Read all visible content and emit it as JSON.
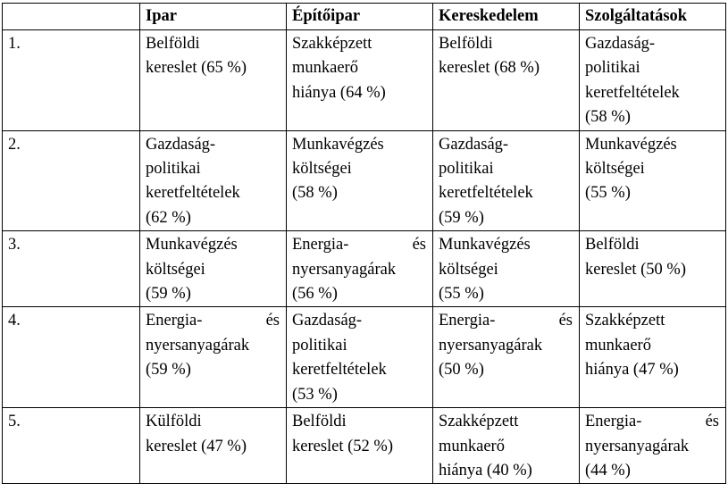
{
  "table": {
    "headers": [
      "",
      "Ipar",
      "Építőipar",
      "Kereskedelem",
      "Szolgáltatások"
    ],
    "rows": [
      {
        "rank": "1.",
        "cells": [
          [
            "Belföldi",
            "kereslet (65 %)"
          ],
          [
            "Szakképzett",
            "munkaerő",
            "hiánya (64 %)"
          ],
          [
            "Belföldi",
            "kereslet (68 %)"
          ],
          [
            "Gazdaság-",
            "politikai",
            "keretfeltételek",
            "(58 %)"
          ]
        ]
      },
      {
        "rank": "2.",
        "cells": [
          [
            "Gazdaság-",
            "politikai",
            "keretfeltételek",
            "(62 %)"
          ],
          [
            "Munkavégzés",
            "költségei",
            "(58 %)"
          ],
          [
            "Gazdaság-",
            "politikai",
            "keretfeltételek",
            "(59 %)"
          ],
          [
            "Munkavégzés",
            "költségei",
            "(55 %)"
          ]
        ]
      },
      {
        "rank": "3.",
        "cells": [
          [
            "Munkavégzés",
            "költségei",
            "(59 %)"
          ],
          [
            "Energia-       és",
            "nyersanyagárak",
            "(56 %)"
          ],
          [
            "Munkavégzés",
            "költségei",
            "(55 %)"
          ],
          [
            "Belföldi",
            "kereslet (50 %)"
          ]
        ]
      },
      {
        "rank": "4.",
        "cells": [
          [
            "Energia-       és",
            "nyersanyagárak",
            "(59 %)"
          ],
          [
            "Gazdaság-",
            "politikai",
            "keretfeltételek",
            "(53 %)"
          ],
          [
            "Energia-       és",
            "nyersanyagárak",
            "(50 %)"
          ],
          [
            "Szakképzett",
            "munkaerő",
            "hiánya (47 %)"
          ]
        ]
      },
      {
        "rank": "5.",
        "cells": [
          [
            "Külföldi",
            "kereslet (47 %)"
          ],
          [
            "Belföldi",
            "kereslet (52 %)"
          ],
          [
            "Szakképzett",
            "munkaerő",
            "hiánya (40 %)"
          ],
          [
            "Energia-       és",
            "nyersanyagárak",
            "(44 %)"
          ]
        ]
      }
    ]
  }
}
